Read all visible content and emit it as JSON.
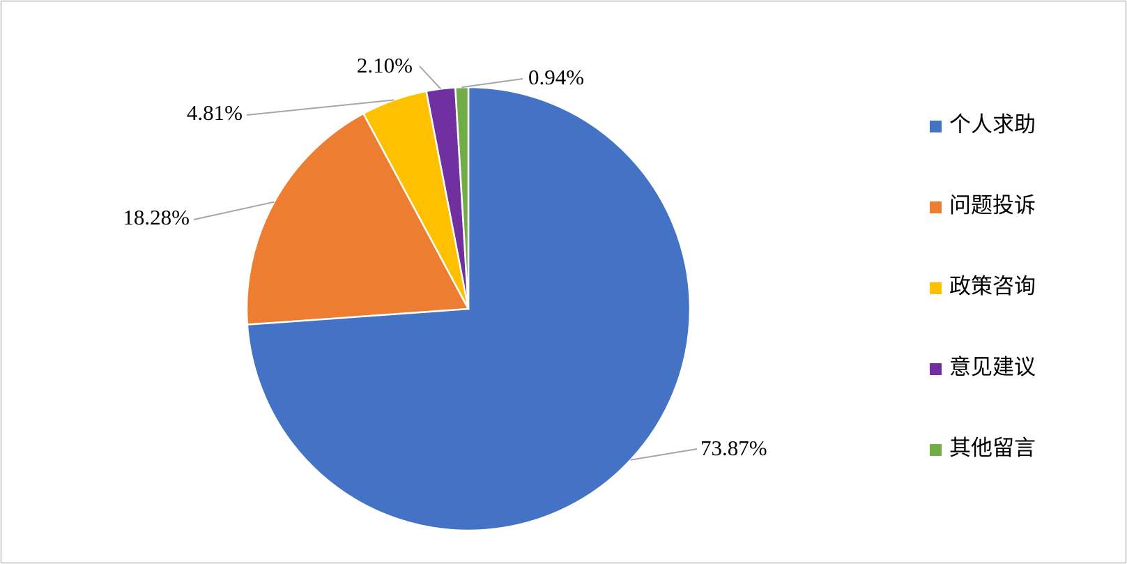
{
  "chart_data": {
    "type": "pie",
    "categories": [
      "个人求助",
      "问题投诉",
      "政策咨询",
      "意见建议",
      "其他留言"
    ],
    "values": [
      73.87,
      18.28,
      4.81,
      2.1,
      0.94
    ],
    "value_labels": [
      "73.87%",
      "18.28%",
      "4.81%",
      "2.10%",
      "0.94%"
    ],
    "colors": [
      "#4472c4",
      "#ed7d31",
      "#ffc000",
      "#7030a0",
      "#70ad47"
    ],
    "legend": "right"
  }
}
